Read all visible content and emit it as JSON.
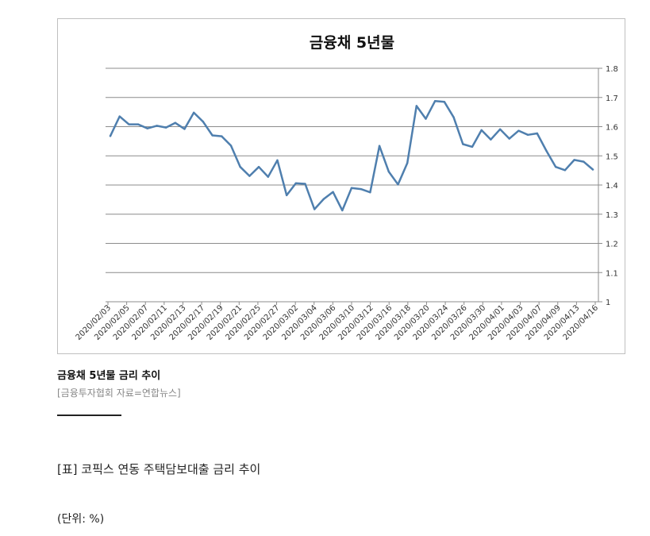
{
  "chart_data": {
    "type": "line",
    "title": "금융채 5년물",
    "xlabel": "",
    "ylabel": "",
    "ylim": [
      1,
      1.8
    ],
    "yticks": [
      "1.8",
      "1.7",
      "1.6",
      "1.5",
      "1.4",
      "1.3",
      "1.2",
      "1.1",
      "1"
    ],
    "y_axis_side": "right",
    "grid": true,
    "line_color": "#4f7fae",
    "x_tick_labels": [
      "2020/02/03",
      "2020/02/05",
      "2020/02/07",
      "2020/02/11",
      "2020/02/13",
      "2020/02/17",
      "2020/02/19",
      "2020/02/21",
      "2020/02/25",
      "2020/02/27",
      "2020/03/02",
      "2020/03/04",
      "2020/03/06",
      "2020/03/10",
      "2020/03/12",
      "2020/03/16",
      "2020/03/18",
      "2020/03/20",
      "2020/03/24",
      "2020/03/26",
      "2020/03/30",
      "2020/04/01",
      "2020/04/03",
      "2020/04/07",
      "2020/04/09",
      "2020/04/13",
      "2020/04/16"
    ],
    "series": [
      {
        "values": [
          1.568,
          1.635,
          1.608,
          1.608,
          1.594,
          1.603,
          1.597,
          1.613,
          1.592,
          1.648,
          1.617,
          1.57,
          1.567,
          1.535,
          1.462,
          1.431,
          1.462,
          1.428,
          1.485,
          1.365,
          1.406,
          1.404,
          1.317,
          1.352,
          1.376,
          1.313,
          1.39,
          1.386,
          1.375,
          1.534,
          1.446,
          1.402,
          1.475,
          1.671,
          1.627,
          1.688,
          1.685,
          1.632,
          1.54,
          1.531,
          1.588,
          1.556,
          1.591,
          1.559,
          1.586,
          1.572,
          1.577,
          1.517,
          1.462,
          1.451,
          1.486,
          1.48,
          1.453
        ]
      }
    ]
  },
  "caption": {
    "title": "금융채 5년물 금리 추이",
    "source": "[금융투자협회 자료=연합뉴스]"
  },
  "table_heading": "[표] 코픽스 연동 주택담보대출 금리 추이",
  "unit_label": "(단위: %)"
}
